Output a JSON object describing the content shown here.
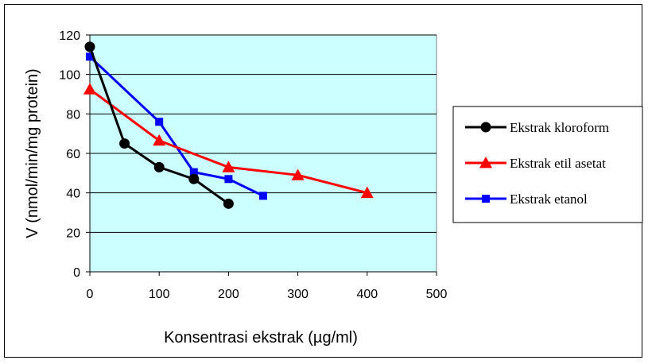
{
  "chart_data": {
    "type": "line",
    "xlabel": "Konsentrasi ekstrak (µg/ml)",
    "ylabel": "V (nmol/min/mg protein)",
    "xlim": [
      0,
      500
    ],
    "ylim": [
      0,
      120
    ],
    "xticks": [
      0,
      100,
      200,
      300,
      400,
      500
    ],
    "yticks": [
      0,
      20,
      40,
      60,
      80,
      100,
      120
    ],
    "grid": "horizontal",
    "legend_position": "right",
    "plot_background": "#ccffff",
    "series": [
      {
        "name": "Ekstrak kloroform",
        "color": "#000000",
        "marker": "circle",
        "x": [
          0,
          50,
          100,
          150,
          200
        ],
        "values": [
          114,
          65,
          53,
          47,
          34.5
        ]
      },
      {
        "name": "Ekstrak etil asetat",
        "color": "#ff0000",
        "marker": "triangle",
        "x": [
          0,
          100,
          200,
          300,
          400
        ],
        "values": [
          92.5,
          66.5,
          53,
          49,
          40
        ]
      },
      {
        "name": "Ekstrak etanol",
        "color": "#0000ff",
        "marker": "square",
        "x": [
          0,
          100,
          150,
          200,
          250
        ],
        "values": [
          109,
          76,
          50.5,
          47,
          38.5
        ]
      }
    ]
  }
}
